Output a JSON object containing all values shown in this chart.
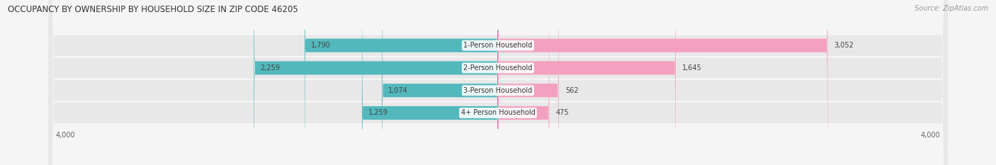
{
  "title": "OCCUPANCY BY OWNERSHIP BY HOUSEHOLD SIZE IN ZIP CODE 46205",
  "source": "Source: ZipAtlas.com",
  "categories": [
    "1-Person Household",
    "2-Person Household",
    "3-Person Household",
    "4+ Person Household"
  ],
  "owner_values": [
    1790,
    2259,
    1074,
    1259
  ],
  "renter_values": [
    3052,
    1645,
    562,
    475
  ],
  "owner_color": "#52b8bc",
  "renter_color": "#f4a0c0",
  "axis_max": 4000,
  "bg_color": "#f5f5f5",
  "row_bg_color": "#e8e8e8",
  "title_fontsize": 8.5,
  "source_fontsize": 7,
  "tick_fontsize": 7,
  "bar_label_fontsize": 7,
  "legend_fontsize": 7.5,
  "category_label_fontsize": 7
}
